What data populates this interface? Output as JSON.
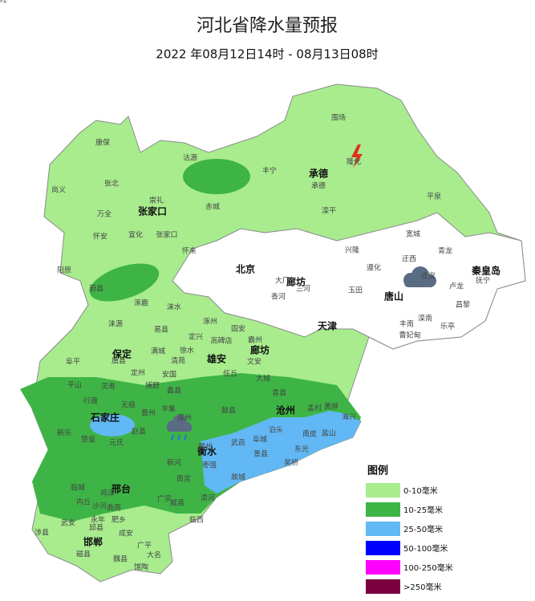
{
  "header": {
    "title": "河北省降水量预报",
    "subtitle": "2022 年08月12日14时 - 08月13日08时"
  },
  "cities": [
    "张家口",
    "承德",
    "北京",
    "廊坊",
    "唐山",
    "秦皇岛",
    "天津",
    "保定",
    "雄安",
    "廊坊",
    "沧州",
    "石家庄",
    "衡水",
    "邢台",
    "邯郸"
  ],
  "counties": [
    "康保",
    "沽源",
    "丰宁",
    "围场",
    "隆化",
    "尚义",
    "张北",
    "崇礼",
    "赤城",
    "滦平",
    "兴隆",
    "宽城",
    "青龙",
    "平泉",
    "承德",
    "万全",
    "怀安",
    "宣化",
    "张家口",
    "阳原",
    "怀来",
    "涿鹿",
    "蔚县",
    "遵化",
    "迁西",
    "迁安",
    "卢龙",
    "抚宁",
    "昌黎",
    "乐亭",
    "滦南",
    "丰南",
    "曹妃甸",
    "玉田",
    "三河",
    "香河",
    "大厂",
    "涞源",
    "易县",
    "涞水",
    "涿州",
    "阜平",
    "唐县",
    "满城",
    "定兴",
    "固安",
    "徐水",
    "高碑店",
    "霸州",
    "文安",
    "大城",
    "任丘",
    "定州",
    "安国",
    "清苑",
    "蠡县",
    "博野",
    "深州",
    "辛集",
    "青县",
    "黄骅",
    "孟村",
    "泊头",
    "献县",
    "海兴",
    "盐山",
    "南皮",
    "东光",
    "吴桥",
    "景县",
    "故城",
    "枣强",
    "冀州",
    "武邑",
    "阜城",
    "新河",
    "南宫",
    "清河",
    "临西",
    "威县",
    "广宗",
    "沙河",
    "内丘",
    "临城",
    "武安",
    "涉县",
    "磁县",
    "成安",
    "肥乡",
    "广平",
    "大名",
    "魏县",
    "馆陶",
    "邱县",
    "曲周",
    "鸡泽",
    "永年",
    "赞皇",
    "元氏",
    "赵县",
    "晋州",
    "无极",
    "行唐",
    "平山",
    "灵寿",
    "新乐",
    "井陉"
  ],
  "legend": {
    "title": "图例",
    "items": [
      {
        "label": "0-10毫米",
        "color": "#a8ec8e"
      },
      {
        "label": "10-25毫米",
        "color": "#3eb446"
      },
      {
        "label": "25-50毫米",
        "color": "#62b8f4"
      },
      {
        "label": "50-100毫米",
        "color": "#0000fe"
      },
      {
        "label": "100-250毫米",
        "color": "#fe00fe"
      },
      {
        "label": ">250毫米",
        "color": "#7a0040"
      }
    ]
  }
}
